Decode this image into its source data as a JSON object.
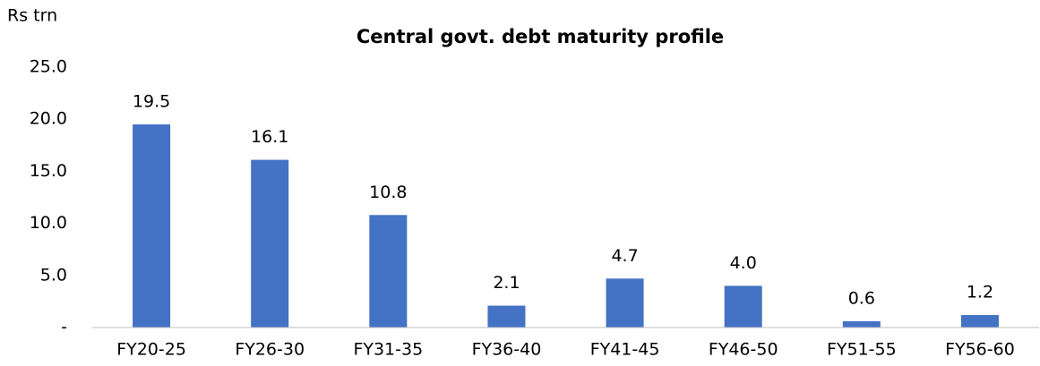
{
  "chart_data": {
    "type": "bar",
    "title": "Central govt. debt maturity profile",
    "y_axis_label": "Rs trn",
    "categories": [
      "FY20-25",
      "FY26-30",
      "FY31-35",
      "FY36-40",
      "FY41-45",
      "FY46-50",
      "FY51-55",
      "FY56-60"
    ],
    "values": [
      19.5,
      16.1,
      10.8,
      2.1,
      4.7,
      4.0,
      0.6,
      1.2
    ],
    "value_labels": [
      "19.5",
      "16.1",
      "10.8",
      "2.1",
      "4.7",
      "4.0",
      "0.6",
      "1.2"
    ],
    "color": "#4472c4",
    "ylim": [
      0,
      25
    ],
    "yticks": [
      {
        "value": 0,
        "label": "-"
      },
      {
        "value": 5,
        "label": "5.0"
      },
      {
        "value": 10,
        "label": "10.0"
      },
      {
        "value": 15,
        "label": "15.0"
      },
      {
        "value": 20,
        "label": "20.0"
      },
      {
        "value": 25,
        "label": "25.0"
      }
    ],
    "grid": false
  }
}
